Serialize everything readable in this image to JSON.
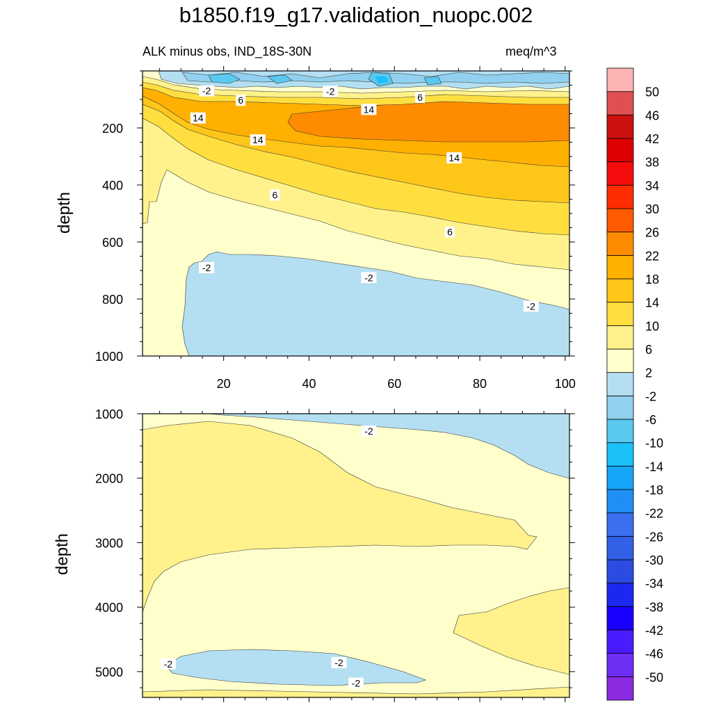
{
  "chart_data": {
    "type": "filled-contour",
    "title": "b1850.f19_g17.validation_nuopc.002",
    "variable_label": "ALK minus obs, IND_18S-30N",
    "units": "meq/m^3",
    "panels": [
      {
        "name": "upper",
        "ylabel": "depth",
        "xlim": [
          1,
          101
        ],
        "ylim": [
          1000,
          0
        ],
        "x_ticks": [
          20,
          40,
          60,
          80,
          100
        ],
        "y_ticks": [
          200,
          400,
          600,
          800,
          1000
        ],
        "contour_labels": [
          {
            "text": "-2",
            "x": 16,
            "y": 70
          },
          {
            "text": "6",
            "x": 24,
            "y": 103
          },
          {
            "text": "-2",
            "x": 45,
            "y": 72
          },
          {
            "text": "6",
            "x": 66,
            "y": 93
          },
          {
            "text": "14",
            "x": 14,
            "y": 165
          },
          {
            "text": "14",
            "x": 54,
            "y": 135
          },
          {
            "text": "14",
            "x": 28,
            "y": 242
          },
          {
            "text": "14",
            "x": 74,
            "y": 305
          },
          {
            "text": "6",
            "x": 32,
            "y": 435
          },
          {
            "text": "6",
            "x": 73,
            "y": 565
          },
          {
            "text": "-2",
            "x": 16,
            "y": 690
          },
          {
            "text": "-2",
            "x": 54,
            "y": 725
          },
          {
            "text": "-2",
            "x": 92,
            "y": 825
          }
        ]
      },
      {
        "name": "lower",
        "ylabel": "depth",
        "xlim": [
          1,
          101
        ],
        "ylim": [
          5400,
          1000
        ],
        "x_ticks": [],
        "y_ticks": [
          1000,
          2000,
          3000,
          4000,
          5000
        ],
        "contour_labels": [
          {
            "text": "-2",
            "x": 54,
            "y": 1270
          },
          {
            "text": "-2",
            "x": 7,
            "y": 4880
          },
          {
            "text": "-2",
            "x": 47,
            "y": 4860
          },
          {
            "text": "-2",
            "x": 51,
            "y": 5180
          }
        ]
      }
    ],
    "colorbar": {
      "levels": [
        "-50",
        "-46",
        "-42",
        "-38",
        "-34",
        "-30",
        "-26",
        "-22",
        "-18",
        "-14",
        "-10",
        "-6",
        "-2",
        "2",
        "6",
        "10",
        "14",
        "18",
        "22",
        "26",
        "30",
        "34",
        "38",
        "42",
        "46",
        "50"
      ],
      "colors": [
        "#8a2be2",
        "#6e2ff4",
        "#4b1bff",
        "#1a00ff",
        "#1b28f0",
        "#2c4be0",
        "#3260e6",
        "#3a6ff0",
        "#1f8ff5",
        "#16a6f7",
        "#1ac0f8",
        "#59c9f0",
        "#91d0ee",
        "#b4dff2",
        "#ffffcc",
        "#fff28c",
        "#ffdf40",
        "#ffc61a",
        "#ffb000",
        "#ff8c00",
        "#ff5a00",
        "#ff2d00",
        "#f50c0c",
        "#dd0000",
        "#cc1010",
        "#e05050",
        "#ffb4b4"
      ]
    }
  }
}
